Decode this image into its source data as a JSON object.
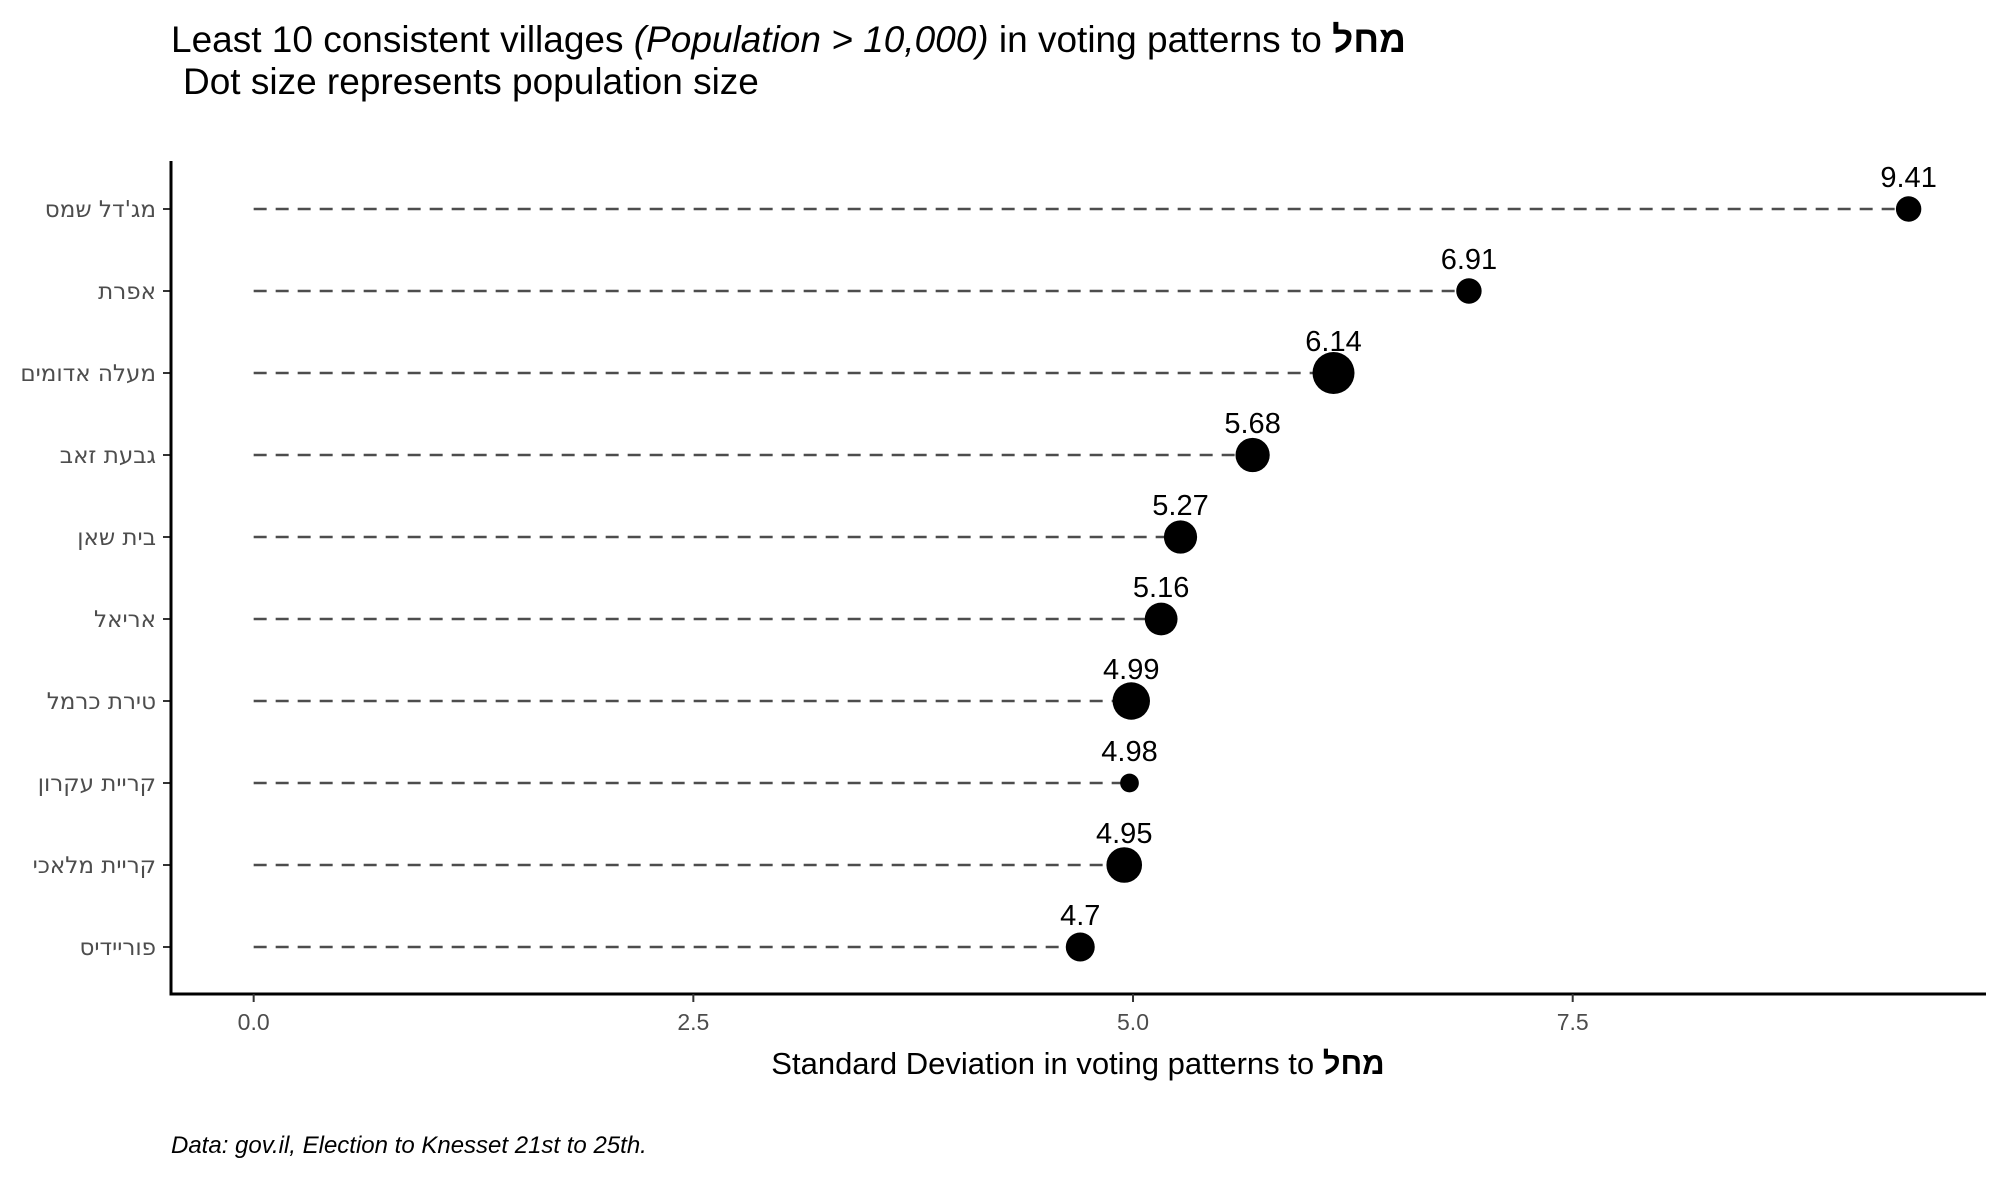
{
  "chart_data": {
    "type": "scatter",
    "title": {
      "part1": "Least 10 consistent villages ",
      "part2_italic": "(Population > 10,000)",
      "part3": " in voting patterns to ",
      "part4_bold": "מחל"
    },
    "subtitle": "Dot size represents population size",
    "xlabel": {
      "text": "Standard Deviation in voting patterns to ",
      "bold": "מחל"
    },
    "ylabel": "",
    "caption": "Data: gov.il, Election to Knesset 21st to 25th.",
    "xlim": [
      -0.47,
      9.85
    ],
    "x_ticks": [
      0,
      2.5,
      5,
      7.5
    ],
    "x_tick_labels": [
      "0.0",
      "2.5",
      "5.0",
      "7.5"
    ],
    "grid": false,
    "legend": "none",
    "points": [
      {
        "village": "מג'דל שמס",
        "std_dev": 9.41,
        "label": "9.41",
        "size": 0.2
      },
      {
        "village": "אפרת",
        "std_dev": 6.91,
        "label": "6.91",
        "size": 0.2
      },
      {
        "village": "מעלה אדומים",
        "std_dev": 6.14,
        "label": "6.14",
        "size": 1.0
      },
      {
        "village": "גבעת זאב",
        "std_dev": 5.68,
        "label": "5.68",
        "size": 0.55
      },
      {
        "village": "בית שאן",
        "std_dev": 5.27,
        "label": "5.27",
        "size": 0.5
      },
      {
        "village": "אריאל",
        "std_dev": 5.16,
        "label": "5.16",
        "size": 0.48
      },
      {
        "village": "טירת כרמל",
        "std_dev": 4.99,
        "label": "4.99",
        "size": 0.72
      },
      {
        "village": "קריית עקרון",
        "std_dev": 4.98,
        "label": "4.98",
        "size": 0.05
      },
      {
        "village": "קריית מלאכי",
        "std_dev": 4.95,
        "label": "4.95",
        "size": 0.62
      },
      {
        "village": "פוריידיס",
        "std_dev": 4.7,
        "label": "4.7",
        "size": 0.32
      }
    ]
  },
  "colors": {
    "dot": "#000000",
    "stem": "#4d4d4d",
    "axis": "#000000",
    "tick_label": "#4d4d4d",
    "text": "#000000"
  }
}
